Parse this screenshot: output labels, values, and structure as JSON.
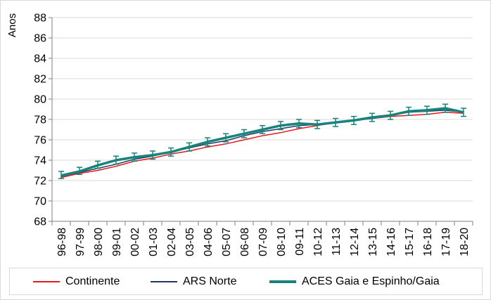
{
  "chart_data": {
    "type": "line",
    "title": "",
    "xlabel": "",
    "ylabel": "Anos",
    "ylim": [
      68,
      88
    ],
    "yticks": [
      "68",
      "70",
      "72",
      "74",
      "76",
      "78",
      "80",
      "82",
      "84",
      "86",
      "88"
    ],
    "categories": [
      "96-98",
      "97-99",
      "98-00",
      "99-01",
      "00-02",
      "01-03",
      "02-04",
      "03-05",
      "04-06",
      "05-07",
      "06-08",
      "07-09",
      "08-10",
      "09-11",
      "10-12",
      "11-13",
      "12-14",
      "13-15",
      "14-16",
      "15-17",
      "16-18",
      "17-19",
      "18-20"
    ],
    "grid": true,
    "legend_position": "bottom",
    "series": [
      {
        "name": "Continente",
        "color": "#e31a1c",
        "values": [
          72.3,
          72.7,
          73.0,
          73.4,
          73.9,
          74.2,
          74.6,
          74.9,
          75.3,
          75.6,
          76.0,
          76.4,
          76.7,
          77.1,
          77.4,
          77.7,
          77.9,
          78.1,
          78.3,
          78.4,
          78.5,
          78.7,
          78.6
        ]
      },
      {
        "name": "ARS Norte",
        "color": "#1f3864",
        "values": [
          72.4,
          72.8,
          73.2,
          73.6,
          74.1,
          74.4,
          74.8,
          75.2,
          75.6,
          75.9,
          76.4,
          76.8,
          77.1,
          77.4,
          77.5,
          77.7,
          77.9,
          78.1,
          78.4,
          78.7,
          78.8,
          78.9,
          78.7
        ]
      },
      {
        "name": "ACES Gaia e Espinho/Gaia",
        "color": "#17837a",
        "values": [
          72.5,
          72.9,
          73.5,
          74.0,
          74.3,
          74.5,
          74.8,
          75.3,
          75.8,
          76.2,
          76.6,
          77.0,
          77.4,
          77.6,
          77.5,
          77.7,
          77.9,
          78.2,
          78.4,
          78.8,
          78.9,
          79.1,
          78.7
        ],
        "error_low": [
          72.2,
          72.6,
          73.2,
          73.6,
          73.9,
          74.1,
          74.4,
          74.9,
          75.4,
          75.8,
          76.2,
          76.6,
          77.0,
          77.2,
          77.1,
          77.3,
          77.5,
          77.8,
          78.0,
          78.4,
          78.5,
          78.7,
          78.3
        ],
        "error_high": [
          72.9,
          73.3,
          73.9,
          74.4,
          74.7,
          74.9,
          75.2,
          75.7,
          76.2,
          76.6,
          77.0,
          77.4,
          77.8,
          78.0,
          77.9,
          78.1,
          78.3,
          78.6,
          78.8,
          79.2,
          79.3,
          79.5,
          79.1
        ]
      }
    ]
  },
  "legend": {
    "item1": "Continente",
    "item2": "ARS Norte",
    "item3": "ACES Gaia e Espinho/Gaia"
  }
}
